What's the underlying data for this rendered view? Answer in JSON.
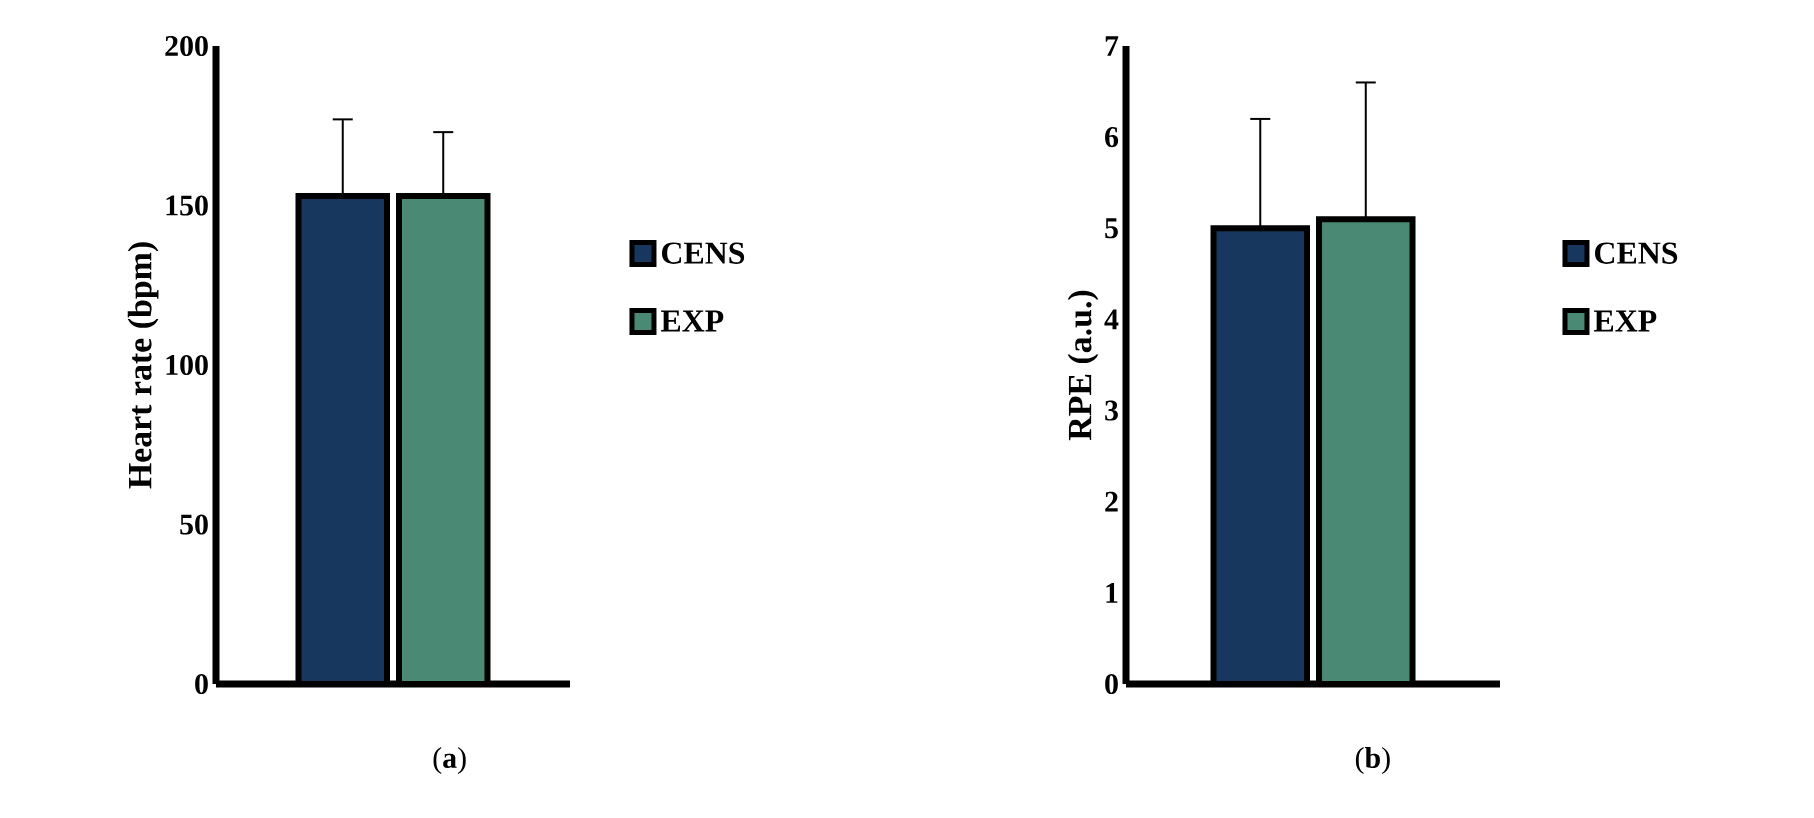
{
  "chart_data": [
    {
      "type": "bar",
      "ylabel": "Heart rate (bpm)",
      "categories": [
        null
      ],
      "ylim": [
        0,
        200
      ],
      "yticks": [
        0,
        50,
        100,
        150,
        200
      ],
      "legend": "right",
      "grid": false,
      "annotations": [
        "(**a**)"
      ],
      "series": [
        {
          "name": "CENS",
          "color": "#17375e",
          "values": [
            153
          ],
          "errors": [
            24
          ]
        },
        {
          "name": "EXP",
          "color": "#4a8a74",
          "values": [
            153
          ],
          "errors": [
            20
          ]
        }
      ]
    },
    {
      "type": "bar",
      "ylabel": "RPE (a.u.)",
      "categories": [
        null
      ],
      "ylim": [
        0,
        7
      ],
      "yticks": [
        0,
        1,
        2,
        3,
        4,
        5,
        6,
        7
      ],
      "legend": "right",
      "grid": false,
      "annotations": [
        "(**b**)"
      ],
      "series": [
        {
          "name": "CENS",
          "color": "#17375e",
          "values": [
            5.0
          ],
          "errors": [
            1.2
          ]
        },
        {
          "name": "EXP",
          "color": "#4a8a74",
          "values": [
            5.1
          ],
          "errors": [
            1.5
          ]
        }
      ]
    }
  ]
}
